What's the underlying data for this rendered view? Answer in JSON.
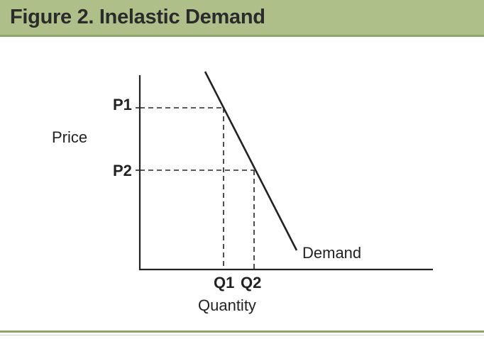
{
  "figure": {
    "title": "Figure 2. Inelastic Demand"
  },
  "diagram": {
    "axis_labels": {
      "y": "Price",
      "x": "Quantity"
    },
    "price_labels": [
      "P1",
      "P2"
    ],
    "quantity_labels": [
      "Q1",
      "Q2"
    ],
    "curve_label": "Demand"
  },
  "colors": {
    "header_bg": "#aebf8a",
    "header_rule": "#8fa66a",
    "ink": "#222222"
  }
}
